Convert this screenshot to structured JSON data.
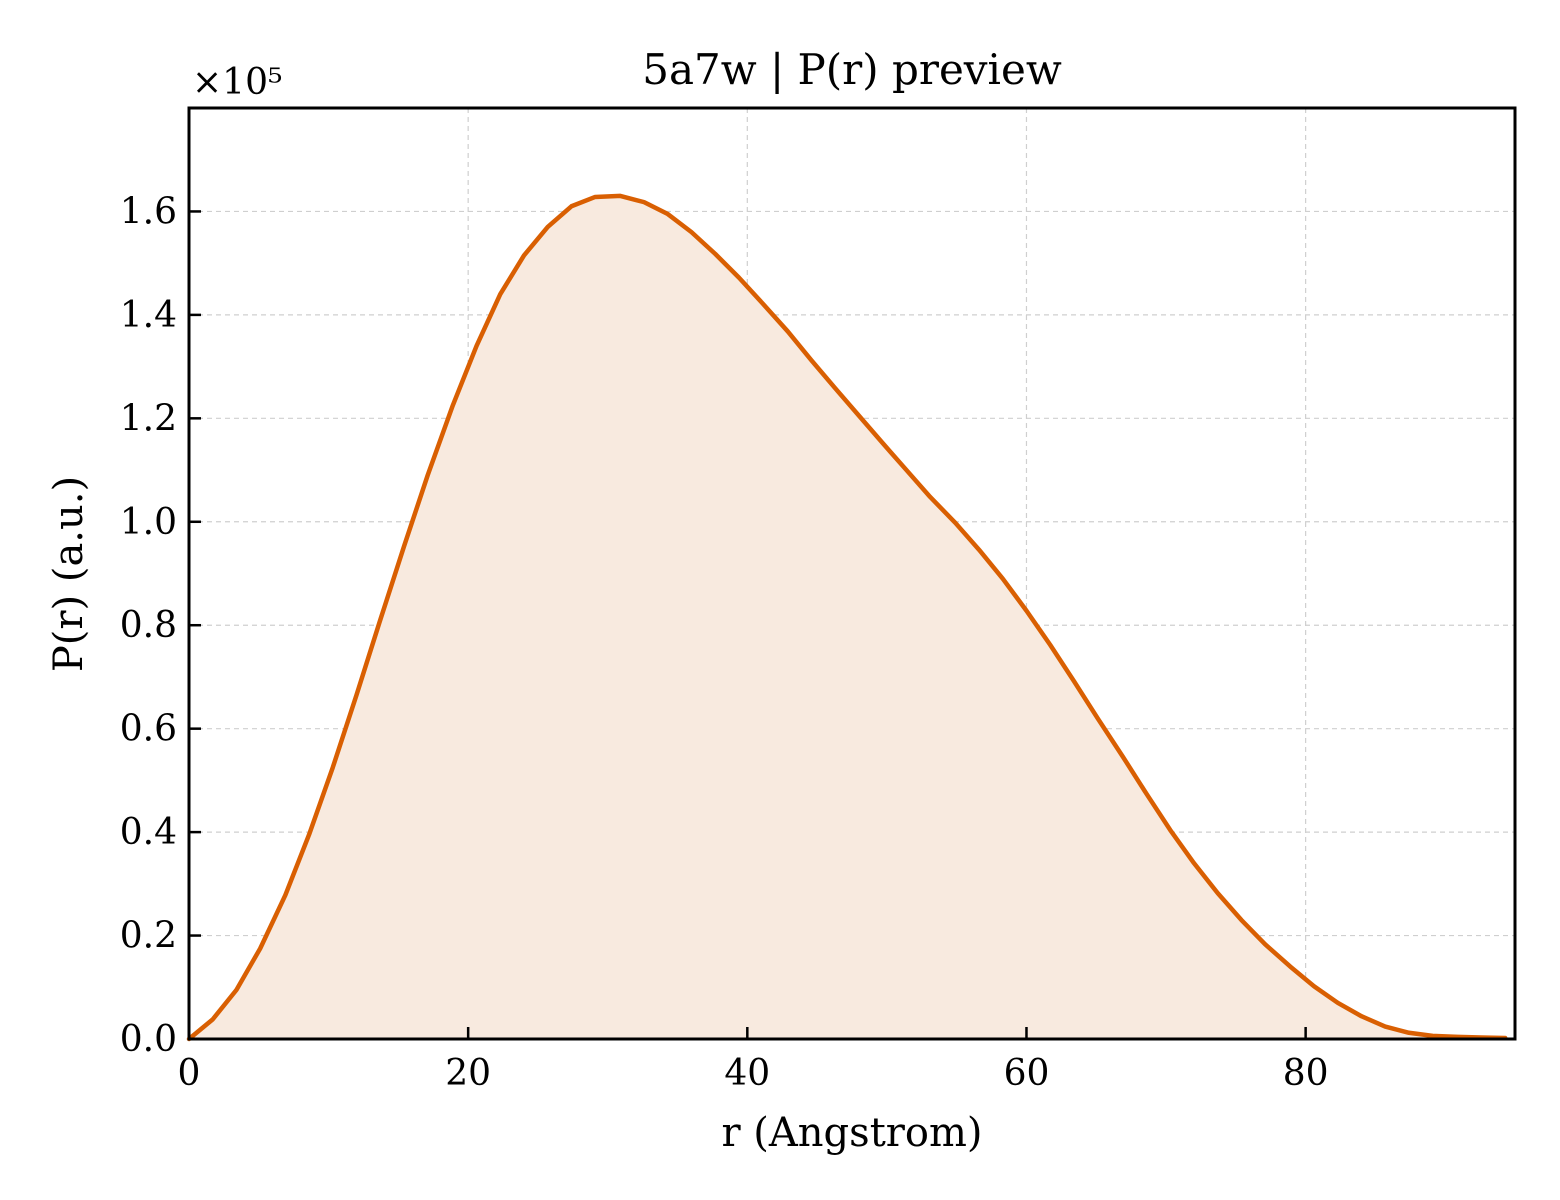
{
  "chart_data": {
    "type": "area",
    "title": "5a7w | P(r) preview",
    "xlabel": "r (Angstrom)",
    "ylabel": "P(r) (a.u.)",
    "y_multiplier_label": "×10⁵",
    "xlim": [
      0,
      95
    ],
    "ylim": [
      0,
      1.8
    ],
    "y_scale_factor": 100000,
    "x_ticks": [
      0,
      20,
      40,
      60,
      80
    ],
    "x_tick_labels": [
      "0",
      "20",
      "40",
      "60",
      "80"
    ],
    "y_ticks": [
      0.0,
      0.2,
      0.4,
      0.6,
      0.8,
      1.0,
      1.2,
      1.4,
      1.6
    ],
    "y_tick_labels": [
      "0.0",
      "0.2",
      "0.4",
      "0.6",
      "0.8",
      "1.0",
      "1.2",
      "1.4",
      "1.6"
    ],
    "grid": true,
    "legend": "none",
    "series": [
      {
        "line_color": "#d95f02",
        "fill_color": "#f8eadf",
        "x": [
          0,
          1.7,
          3.4,
          5.1,
          6.9,
          8.6,
          10.3,
          12.0,
          13.7,
          15.4,
          17.1,
          18.9,
          20.6,
          22.3,
          24.0,
          25.7,
          27.4,
          29.1,
          30.9,
          32.6,
          34.3,
          36.0,
          37.7,
          39.4,
          41.1,
          42.9,
          44.6,
          46.3,
          48.0,
          49.7,
          51.4,
          53.1,
          54.9,
          56.6,
          58.3,
          60.0,
          61.7,
          63.4,
          65.1,
          66.9,
          68.6,
          70.3,
          72.0,
          73.7,
          75.4,
          77.1,
          78.9,
          80.6,
          82.3,
          84.0,
          85.7,
          87.4,
          89.1,
          90.9,
          92.6,
          94.3
        ],
        "y": [
          0.0,
          0.038,
          0.095,
          0.175,
          0.278,
          0.395,
          0.525,
          0.665,
          0.81,
          0.952,
          1.09,
          1.225,
          1.34,
          1.44,
          1.515,
          1.57,
          1.61,
          1.628,
          1.63,
          1.618,
          1.595,
          1.56,
          1.518,
          1.472,
          1.422,
          1.368,
          1.312,
          1.258,
          1.205,
          1.152,
          1.1,
          1.048,
          0.998,
          0.946,
          0.89,
          0.828,
          0.762,
          0.692,
          0.62,
          0.546,
          0.474,
          0.404,
          0.34,
          0.282,
          0.23,
          0.183,
          0.14,
          0.102,
          0.07,
          0.044,
          0.024,
          0.012,
          0.006,
          0.004,
          0.003,
          0.002
        ]
      }
    ]
  }
}
